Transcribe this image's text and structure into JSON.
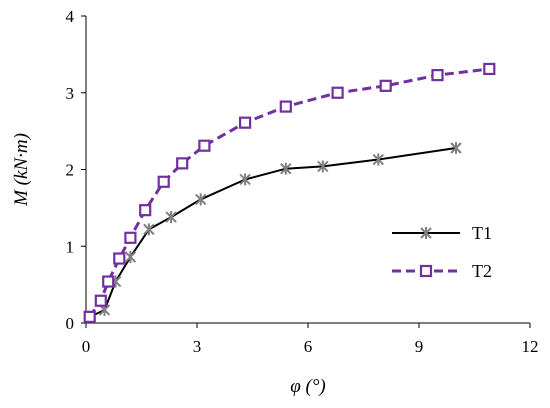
{
  "chart_data": {
    "type": "line",
    "xlabel": "φ (°)",
    "ylabel": "M (kN·m)",
    "xlim": [
      0,
      12
    ],
    "ylim": [
      0,
      4
    ],
    "xticks": [
      "0",
      "3",
      "6",
      "9",
      "12"
    ],
    "yticks": [
      "0",
      "1",
      "2",
      "3",
      "4"
    ],
    "grid": false,
    "legend_position": "right",
    "series": [
      {
        "name": "T1",
        "color": "#000000",
        "marker_color": "#808080",
        "line_style": "solid",
        "marker": "asterisk",
        "x": [
          0.1,
          0.5,
          0.8,
          1.2,
          1.7,
          2.3,
          3.1,
          4.3,
          5.4,
          6.4,
          7.9,
          10.0
        ],
        "y": [
          0.08,
          0.17,
          0.54,
          0.86,
          1.22,
          1.38,
          1.61,
          1.87,
          2.01,
          2.04,
          2.13,
          2.28
        ]
      },
      {
        "name": "T2",
        "color": "#7030A0",
        "marker_color": "#7030A0",
        "line_style": "dashed",
        "marker": "square",
        "x": [
          0.1,
          0.4,
          0.6,
          0.9,
          1.2,
          1.6,
          2.1,
          2.6,
          3.2,
          4.3,
          5.4,
          6.8,
          8.1,
          9.5,
          10.9
        ],
        "y": [
          0.08,
          0.29,
          0.54,
          0.84,
          1.11,
          1.47,
          1.84,
          2.08,
          2.31,
          2.61,
          2.82,
          3.0,
          3.09,
          3.23,
          3.31
        ]
      }
    ]
  }
}
